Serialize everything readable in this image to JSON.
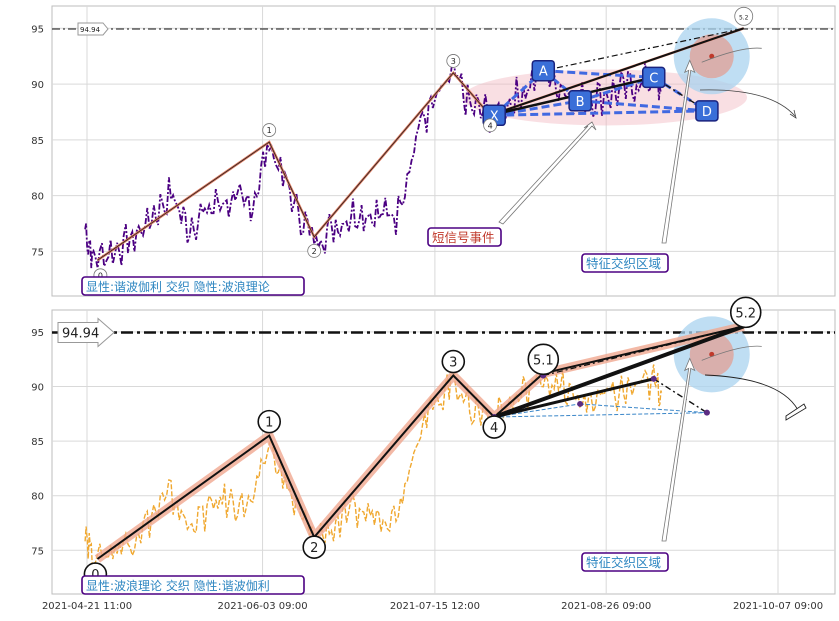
{
  "chart_data": [
    {
      "type": "line",
      "panel": "top",
      "ylim": [
        71,
        97
      ],
      "y_ticks": [
        75,
        80,
        85,
        90,
        95
      ],
      "reference_line": {
        "value": 94.94,
        "label": "94.94"
      },
      "price_color": "#4b0082",
      "price_style": "dashdot",
      "wave_points": [
        {
          "label": "0",
          "date": "2021-04-24",
          "price": 74.2
        },
        {
          "label": "1",
          "date": "2021-06-05",
          "price": 84.8
        },
        {
          "label": "2",
          "date": "2021-06-16",
          "price": 76.3
        },
        {
          "label": "3",
          "date": "2021-07-20",
          "price": 91.0
        },
        {
          "label": "4",
          "date": "2021-07-29",
          "price": 87.2
        },
        {
          "label": "5.2",
          "date": "2021-09-29",
          "price": 95.0
        }
      ],
      "harmonic_points": [
        {
          "label": "X",
          "date": "2021-07-30",
          "price": 87.2
        },
        {
          "label": "A",
          "date": "2021-08-11",
          "price": 91.2
        },
        {
          "label": "B",
          "date": "2021-08-20",
          "price": 88.5
        },
        {
          "label": "C",
          "date": "2021-09-07",
          "price": 90.6
        },
        {
          "label": "D",
          "date": "2021-09-20",
          "price": 87.6
        }
      ],
      "annotations": [
        {
          "text": "短信号事件",
          "color": "#c0392b"
        },
        {
          "text": "特征交织区域",
          "color": "#2e86c1"
        }
      ],
      "legend_text": "显性:谐波伽利 交织 隐性:波浪理论"
    },
    {
      "type": "line",
      "panel": "bottom",
      "ylim": [
        71,
        97
      ],
      "y_ticks": [
        75,
        80,
        85,
        90,
        95
      ],
      "reference_line": {
        "value": 94.94,
        "label": "94.94"
      },
      "price_color": "#f0a830",
      "price_style": "dashed",
      "wave_points": [
        {
          "label": "0",
          "date": "2021-04-24",
          "price": 74.2
        },
        {
          "label": "1",
          "date": "2021-06-05",
          "price": 85.5
        },
        {
          "label": "2",
          "date": "2021-06-16",
          "price": 76.2
        },
        {
          "label": "3",
          "date": "2021-07-20",
          "price": 91.0
        },
        {
          "label": "4",
          "date": "2021-07-30",
          "price": 87.2
        },
        {
          "label": "5.1",
          "date": "2021-08-11",
          "price": 91.2
        },
        {
          "label": "5.2",
          "date": "2021-09-29",
          "price": 95.5
        }
      ],
      "harmonic_points": [
        {
          "label": "",
          "date": "2021-07-30",
          "price": 87.2
        },
        {
          "label": "",
          "date": "2021-08-11",
          "price": 91.0
        },
        {
          "label": "",
          "date": "2021-08-20",
          "price": 88.4
        },
        {
          "label": "",
          "date": "2021-09-07",
          "price": 90.7
        },
        {
          "label": "",
          "date": "2021-09-20",
          "price": 87.6
        }
      ],
      "annotations": [
        {
          "text": "特征交织区域",
          "color": "#2e86c1"
        }
      ],
      "legend_text": "显性:波浪理论 交织 隐性:谐波伽利",
      "x_ticks": [
        "2021-04-21 11:00",
        "2021-06-03 09:00",
        "2021-07-15 12:00",
        "2021-08-26 09:00",
        "2021-10-07 09:00"
      ]
    }
  ]
}
